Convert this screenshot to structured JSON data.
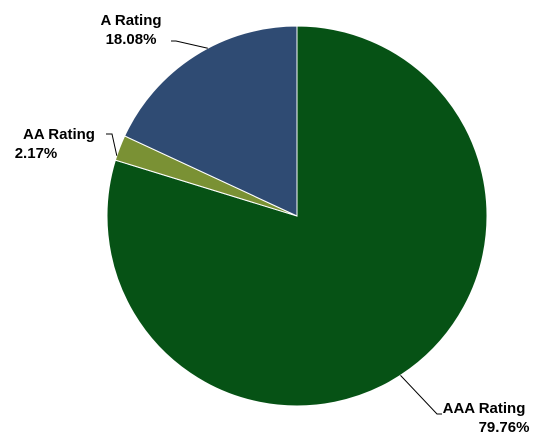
{
  "chart_data": {
    "type": "pie",
    "start_angle_deg": 0,
    "direction": "clockwise",
    "slices": [
      {
        "label": "AAA Rating",
        "value": 79.76,
        "display": "79.76%",
        "color": "#065215"
      },
      {
        "label": "AA Rating",
        "value": 2.17,
        "display": "2.17%",
        "color": "#7A9134"
      },
      {
        "label": "A Rating",
        "value": 18.08,
        "display": "18.08%",
        "color": "#2F4B73"
      }
    ],
    "legend": "none"
  }
}
